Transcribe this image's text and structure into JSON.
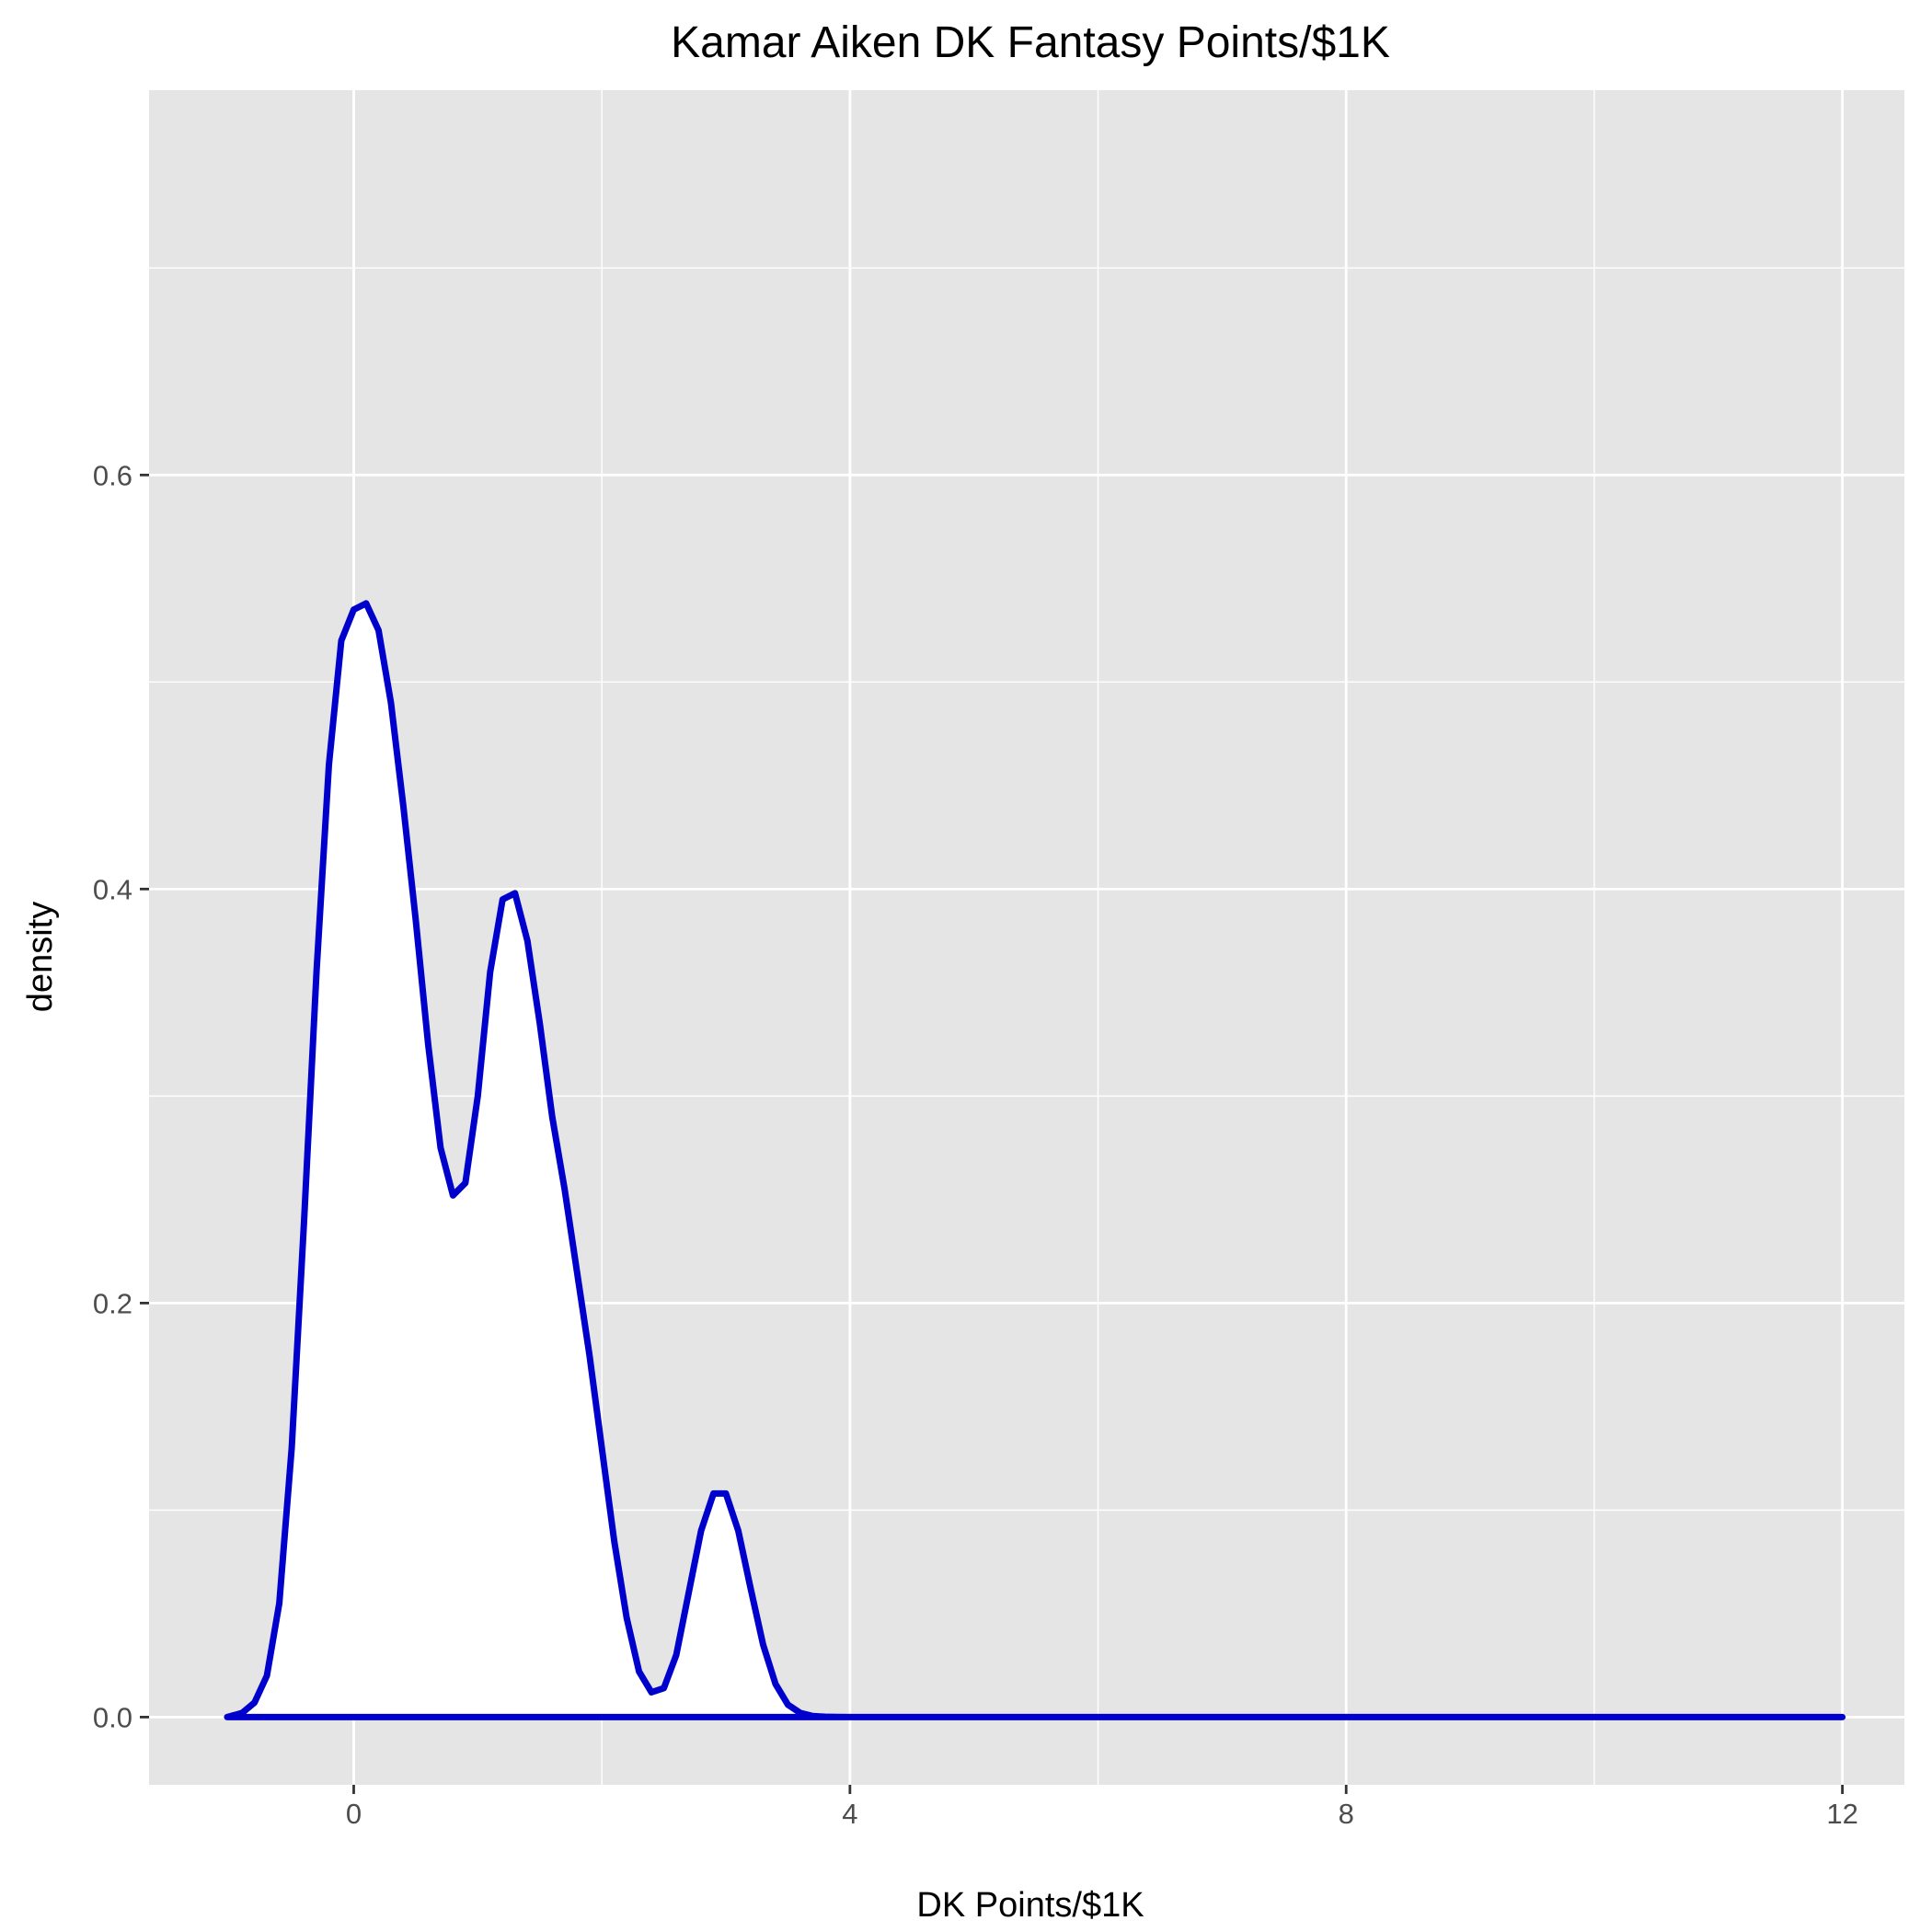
{
  "chart_data": {
    "type": "area",
    "title": "Kamar Aiken DK Fantasy Points/$1K",
    "xlabel": "DK Points/$1K",
    "ylabel": "density",
    "xlim": [
      -1.65,
      12.5
    ],
    "ylim": [
      -0.0327,
      0.7859
    ],
    "x_ticks": [
      {
        "value": 0,
        "label": "0"
      },
      {
        "value": 4,
        "label": "4"
      },
      {
        "value": 8,
        "label": "8"
      },
      {
        "value": 12,
        "label": "12"
      }
    ],
    "x_minor_breaks": [
      2,
      6,
      10
    ],
    "y_ticks": [
      {
        "value": 0.0,
        "label": "0.0"
      },
      {
        "value": 0.2,
        "label": "0.2"
      },
      {
        "value": 0.4,
        "label": "0.4"
      },
      {
        "value": 0.6,
        "label": "0.6"
      }
    ],
    "y_minor_breaks": [
      0.1,
      0.3,
      0.5,
      0.7
    ],
    "grid": true,
    "series": [
      {
        "fill": "#ffffff",
        "line_color": "#0000cd",
        "x": [
          -1.02,
          -0.9,
          -0.8,
          -0.7,
          -0.6,
          -0.5,
          -0.4,
          -0.3,
          -0.2,
          -0.1,
          0.0,
          0.1,
          0.2,
          0.3,
          0.4,
          0.5,
          0.6,
          0.7,
          0.8,
          0.9,
          1.0,
          1.1,
          1.2,
          1.3,
          1.4,
          1.5,
          1.6,
          1.7,
          1.8,
          1.9,
          2.0,
          2.1,
          2.2,
          2.3,
          2.4,
          2.5,
          2.6,
          2.7,
          2.8,
          2.9,
          3.0,
          3.1,
          3.2,
          3.3,
          3.4,
          3.5,
          3.6,
          3.7,
          3.8,
          3.9,
          4.0,
          4.2,
          4.5,
          5.0,
          6.0,
          8.0,
          10.0,
          12.0
        ],
        "y": [
          0.0,
          0.002,
          0.007,
          0.02,
          0.055,
          0.13,
          0.24,
          0.36,
          0.46,
          0.52,
          0.535,
          0.538,
          0.525,
          0.49,
          0.44,
          0.385,
          0.325,
          0.275,
          0.252,
          0.258,
          0.3,
          0.36,
          0.395,
          0.398,
          0.375,
          0.335,
          0.29,
          0.255,
          0.215,
          0.175,
          0.13,
          0.085,
          0.048,
          0.022,
          0.012,
          0.014,
          0.03,
          0.06,
          0.09,
          0.108,
          0.108,
          0.09,
          0.062,
          0.035,
          0.016,
          0.006,
          0.002,
          0.0005,
          0.0002,
          0.0001,
          0.0,
          0.0,
          0.0,
          0.0,
          0.0,
          0.0,
          0.0,
          0.0
        ]
      }
    ]
  }
}
